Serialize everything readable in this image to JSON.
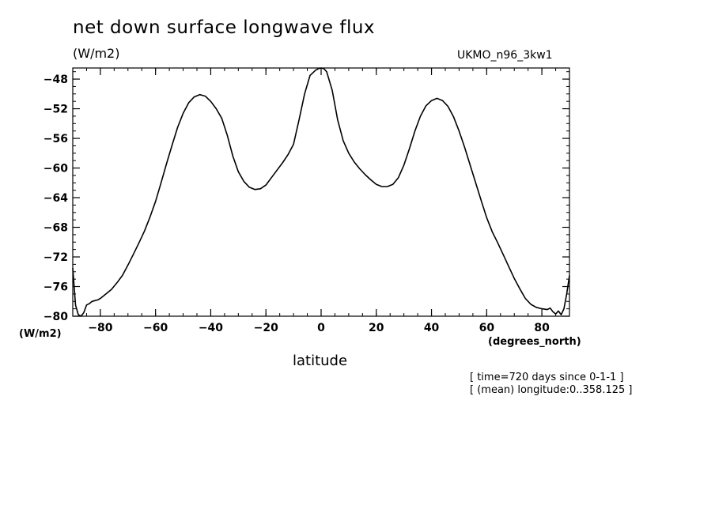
{
  "chart_data": {
    "type": "line",
    "title": "net down surface longwave flux",
    "ylabel": "(W/m2)",
    "yunits_left": "(W/m2)",
    "xlabel": "latitude",
    "xunits": "(degrees_north)",
    "dataset": "UKMO_n96_3kw1",
    "notes": [
      "[ time=720 days since 0-1-1 ]",
      "[ (mean) longitude:0..358.125 ]"
    ],
    "xlim": [
      -90,
      90
    ],
    "ylim": [
      -80,
      -46.5
    ],
    "xticks": [
      -80,
      -60,
      -40,
      -20,
      0,
      20,
      40,
      60,
      80
    ],
    "yticks": [
      -48,
      -52,
      -56,
      -60,
      -64,
      -68,
      -72,
      -76,
      -80
    ],
    "grid": false,
    "x": [
      -90,
      -89,
      -88,
      -87,
      -86,
      -85,
      -84,
      -83,
      -82,
      -81,
      -80,
      -78,
      -76,
      -74,
      -72,
      -70,
      -68,
      -66,
      -64,
      -62,
      -60,
      -58,
      -56,
      -54,
      -52,
      -50,
      -48,
      -46,
      -44,
      -42,
      -40,
      -38,
      -36,
      -34,
      -32,
      -30,
      -28,
      -26,
      -24,
      -22,
      -20,
      -18,
      -16,
      -14,
      -12,
      -10,
      -8,
      -6,
      -4,
      -2,
      -1,
      0,
      1,
      2,
      4,
      6,
      8,
      10,
      12,
      14,
      16,
      18,
      20,
      22,
      24,
      26,
      28,
      30,
      32,
      34,
      36,
      38,
      40,
      42,
      44,
      46,
      48,
      50,
      52,
      54,
      56,
      58,
      60,
      62,
      64,
      66,
      68,
      70,
      72,
      74,
      76,
      78,
      80,
      82,
      83,
      84,
      85,
      86,
      87,
      88,
      89,
      90
    ],
    "y": [
      -73.5,
      -78.5,
      -79.8,
      -80.0,
      -79.5,
      -78.5,
      -78.3,
      -78.0,
      -77.9,
      -77.8,
      -77.6,
      -77.0,
      -76.4,
      -75.5,
      -74.5,
      -73.1,
      -71.6,
      -70.1,
      -68.5,
      -66.6,
      -64.5,
      -62.0,
      -59.4,
      -56.9,
      -54.5,
      -52.6,
      -51.2,
      -50.4,
      -50.1,
      -50.3,
      -51.0,
      -52.0,
      -53.3,
      -55.6,
      -58.4,
      -60.5,
      -61.8,
      -62.6,
      -62.9,
      -62.8,
      -62.3,
      -61.3,
      -60.3,
      -59.3,
      -58.2,
      -56.8,
      -53.5,
      -50.0,
      -47.5,
      -46.8,
      -46.6,
      -46.5,
      -46.6,
      -47.0,
      -49.5,
      -53.5,
      -56.3,
      -58.0,
      -59.2,
      -60.1,
      -60.9,
      -61.6,
      -62.2,
      -62.5,
      -62.5,
      -62.2,
      -61.3,
      -59.6,
      -57.4,
      -55.0,
      -53.0,
      -51.6,
      -50.9,
      -50.6,
      -50.9,
      -51.7,
      -53.1,
      -55.0,
      -57.2,
      -59.6,
      -62.0,
      -64.4,
      -66.7,
      -68.6,
      -70.1,
      -71.7,
      -73.3,
      -74.9,
      -76.3,
      -77.6,
      -78.4,
      -78.8,
      -79.0,
      -79.1,
      -78.9,
      -79.4,
      -79.7,
      -79.3,
      -79.8,
      -79.0,
      -77.0,
      -74.5
    ]
  }
}
